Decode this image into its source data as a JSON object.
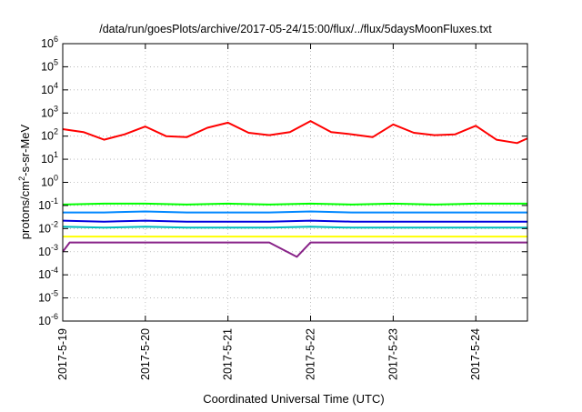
{
  "chart_data": {
    "type": "line",
    "title": "/data/run/goesPlots/archive/2017-05-24/15:00/flux/../flux/5daysMoonFluxes.txt",
    "xlabel": "Coordinated Universal Time (UTC)",
    "ylabel": {
      "prefix": "protons/cm",
      "sup": "2",
      "suffix": "-s-sr-MeV"
    },
    "y_scale": "log",
    "ylim": [
      1e-06,
      1000000.0
    ],
    "y_ticks": [
      {
        "value": 1e-06,
        "base": "10",
        "exp": "-6"
      },
      {
        "value": 1e-05,
        "base": "10",
        "exp": "-5"
      },
      {
        "value": 0.0001,
        "base": "10",
        "exp": "-4"
      },
      {
        "value": 0.001,
        "base": "10",
        "exp": "-3"
      },
      {
        "value": 0.01,
        "base": "10",
        "exp": "-2"
      },
      {
        "value": 0.1,
        "base": "10",
        "exp": "-1"
      },
      {
        "value": 1,
        "base": "10",
        "exp": "0"
      },
      {
        "value": 10,
        "base": "10",
        "exp": "1"
      },
      {
        "value": 100,
        "base": "10",
        "exp": "2"
      },
      {
        "value": 1000,
        "base": "10",
        "exp": "3"
      },
      {
        "value": 10000,
        "base": "10",
        "exp": "4"
      },
      {
        "value": 100000,
        "base": "10",
        "exp": "5"
      },
      {
        "value": 1000000,
        "base": "10",
        "exp": "6"
      }
    ],
    "x_ticks": [
      "2017-5-19",
      "2017-5-20",
      "2017-5-21",
      "2017-5-22",
      "2017-5-23",
      "2017-5-24"
    ],
    "x_range": [
      "2017-05-19 00:00",
      "2017-05-24 15:00"
    ],
    "grid": true,
    "legend": "none",
    "series": [
      {
        "color": "#ff0000",
        "x": [
          "2017-05-19 00:00",
          "2017-05-19 06:00",
          "2017-05-19 12:00",
          "2017-05-19 18:00",
          "2017-05-20 00:00",
          "2017-05-20 06:00",
          "2017-05-20 12:00",
          "2017-05-20 18:00",
          "2017-05-21 00:00",
          "2017-05-21 06:00",
          "2017-05-21 12:00",
          "2017-05-21 18:00",
          "2017-05-22 00:00",
          "2017-05-22 06:00",
          "2017-05-22 12:00",
          "2017-05-22 18:00",
          "2017-05-23 00:00",
          "2017-05-23 06:00",
          "2017-05-23 12:00",
          "2017-05-23 18:00",
          "2017-05-24 00:00",
          "2017-05-24 06:00",
          "2017-05-24 12:00",
          "2017-05-24 15:00"
        ],
        "values": [
          200,
          150,
          70,
          120,
          260,
          100,
          90,
          230,
          380,
          140,
          110,
          150,
          450,
          150,
          120,
          90,
          320,
          140,
          110,
          120,
          280,
          70,
          50,
          80
        ]
      },
      {
        "color": "#00ff00",
        "x": [
          "2017-05-19 00:00",
          "2017-05-19 12:00",
          "2017-05-20 00:00",
          "2017-05-20 12:00",
          "2017-05-21 00:00",
          "2017-05-21 12:00",
          "2017-05-22 00:00",
          "2017-05-22 12:00",
          "2017-05-23 00:00",
          "2017-05-23 12:00",
          "2017-05-24 00:00",
          "2017-05-24 15:00"
        ],
        "values": [
          0.11,
          0.12,
          0.12,
          0.11,
          0.12,
          0.11,
          0.12,
          0.11,
          0.12,
          0.11,
          0.12,
          0.12
        ]
      },
      {
        "color": "#0088ff",
        "x": [
          "2017-05-19 00:00",
          "2017-05-19 12:00",
          "2017-05-20 00:00",
          "2017-05-20 12:00",
          "2017-05-21 00:00",
          "2017-05-21 12:00",
          "2017-05-22 00:00",
          "2017-05-22 12:00",
          "2017-05-23 00:00",
          "2017-05-23 12:00",
          "2017-05-24 00:00",
          "2017-05-24 15:00"
        ],
        "values": [
          0.05,
          0.05,
          0.055,
          0.05,
          0.05,
          0.05,
          0.055,
          0.05,
          0.05,
          0.05,
          0.05,
          0.05
        ]
      },
      {
        "color": "#0000dd",
        "x": [
          "2017-05-19 00:00",
          "2017-05-19 12:00",
          "2017-05-20 00:00",
          "2017-05-20 12:00",
          "2017-05-21 00:00",
          "2017-05-21 12:00",
          "2017-05-22 00:00",
          "2017-05-22 12:00",
          "2017-05-23 00:00",
          "2017-05-23 12:00",
          "2017-05-24 00:00",
          "2017-05-24 15:00"
        ],
        "values": [
          0.022,
          0.02,
          0.022,
          0.02,
          0.02,
          0.02,
          0.022,
          0.02,
          0.02,
          0.02,
          0.02,
          0.02
        ]
      },
      {
        "color": "#00bbbb",
        "x": [
          "2017-05-19 00:00",
          "2017-05-19 12:00",
          "2017-05-20 00:00",
          "2017-05-20 12:00",
          "2017-05-21 00:00",
          "2017-05-21 12:00",
          "2017-05-22 00:00",
          "2017-05-22 12:00",
          "2017-05-23 00:00",
          "2017-05-23 12:00",
          "2017-05-24 00:00",
          "2017-05-24 15:00"
        ],
        "values": [
          0.012,
          0.011,
          0.012,
          0.011,
          0.011,
          0.011,
          0.012,
          0.011,
          0.011,
          0.011,
          0.011,
          0.011
        ]
      },
      {
        "color": "#ffff00",
        "x": [
          "2017-05-19 00:00",
          "2017-05-19 12:00",
          "2017-05-20 00:00",
          "2017-05-20 12:00",
          "2017-05-21 00:00",
          "2017-05-21 12:00",
          "2017-05-22 00:00",
          "2017-05-22 12:00",
          "2017-05-23 00:00",
          "2017-05-23 12:00",
          "2017-05-24 00:00",
          "2017-05-24 15:00"
        ],
        "values": [
          0.0045,
          0.0045,
          0.0045,
          0.0045,
          0.0045,
          0.0045,
          0.0045,
          0.0045,
          0.0045,
          0.0045,
          0.0045,
          0.0045
        ]
      },
      {
        "color": "#882288",
        "x": [
          "2017-05-19 00:00",
          "2017-05-19 02:00",
          "2017-05-19 06:00",
          "2017-05-19 12:00",
          "2017-05-20 00:00",
          "2017-05-20 12:00",
          "2017-05-21 00:00",
          "2017-05-21 12:00",
          "2017-05-21 20:00",
          "2017-05-22 00:00",
          "2017-05-22 12:00",
          "2017-05-23 00:00",
          "2017-05-23 12:00",
          "2017-05-24 00:00",
          "2017-05-24 15:00"
        ],
        "values": [
          0.001,
          0.0025,
          0.0025,
          0.0025,
          0.0025,
          0.0025,
          0.0025,
          0.0025,
          0.0006,
          0.0025,
          0.0025,
          0.0025,
          0.0025,
          0.0025,
          0.0025
        ]
      }
    ]
  }
}
